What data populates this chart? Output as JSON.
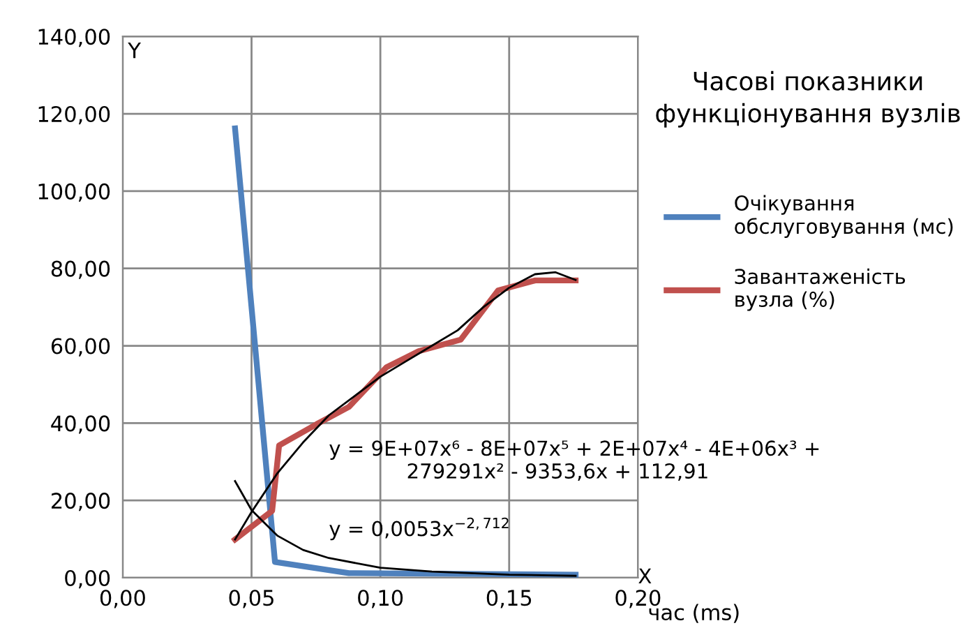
{
  "chart_data": {
    "type": "line",
    "title": "Часові показники\nфункціонування вузлів",
    "xlabel": "час (ms)",
    "ylabel": "Y",
    "xlim": [
      0,
      0.2
    ],
    "ylim": [
      0,
      140
    ],
    "xticks": [
      {
        "value": 0,
        "label": "0,00"
      },
      {
        "value": 0.05,
        "label": "0,05"
      },
      {
        "value": 0.1,
        "label": "0,10"
      },
      {
        "value": 0.15,
        "label": "0,15"
      },
      {
        "value": 0.2,
        "label": "0,20"
      }
    ],
    "yticks": [
      {
        "value": 0,
        "label": "0,00"
      },
      {
        "value": 20,
        "label": "20,00"
      },
      {
        "value": 40,
        "label": "40,00"
      },
      {
        "value": 60,
        "label": "60,00"
      },
      {
        "value": 80,
        "label": "80,00"
      },
      {
        "value": 100,
        "label": "100,00"
      },
      {
        "value": 120,
        "label": "120,00"
      },
      {
        "value": 140,
        "label": "140,00"
      }
    ],
    "grid": true,
    "legend": "right",
    "marker": "none",
    "series": [
      {
        "name": "Очікування обслуговування (мс)",
        "color": "#4f81bd",
        "x": [
          0.0436,
          0.0591,
          0.0878,
          0.1758
        ],
        "values": [
          116.2,
          4.1,
          1.2,
          0.8
        ]
      },
      {
        "name": "Завантаженість вузла (%)",
        "color": "#c0504d",
        "x": [
          0.0436,
          0.058,
          0.0607,
          0.0752,
          0.0878,
          0.1023,
          0.1149,
          0.1312,
          0.1457,
          0.1601,
          0.1758
        ],
        "values": [
          9.9,
          17.3,
          34.2,
          39.7,
          44.2,
          54.4,
          58.6,
          61.6,
          74.3,
          76.9,
          76.9
        ]
      },
      {
        "color": "#000000",
        "x": [
          0.0436,
          0.05,
          0.06,
          0.07,
          0.08,
          0.09,
          0.1,
          0.11,
          0.12,
          0.13,
          0.14,
          0.15,
          0.16,
          0.168,
          0.1758
        ],
        "values": [
          9.9,
          17,
          27,
          35,
          42,
          47,
          52,
          56,
          60,
          64,
          70,
          75,
          78.5,
          79,
          77
        ]
      },
      {
        "color": "#000000",
        "x": [
          0.0436,
          0.05,
          0.06,
          0.07,
          0.08,
          0.1,
          0.12,
          0.15,
          0.1758
        ],
        "values": [
          25,
          17.5,
          10.9,
          7.2,
          5.1,
          2.6,
          1.6,
          0.8,
          0.5
        ]
      }
    ],
    "annotations": [
      "y = 9E+07x⁶ - 8E+07x⁵ + 2E+07x⁴ - 4E+06x³ +\n            279291x² - 9353,6x + 112,91",
      "y = 0,0053x$^{−2,712}$",
      "X"
    ]
  }
}
